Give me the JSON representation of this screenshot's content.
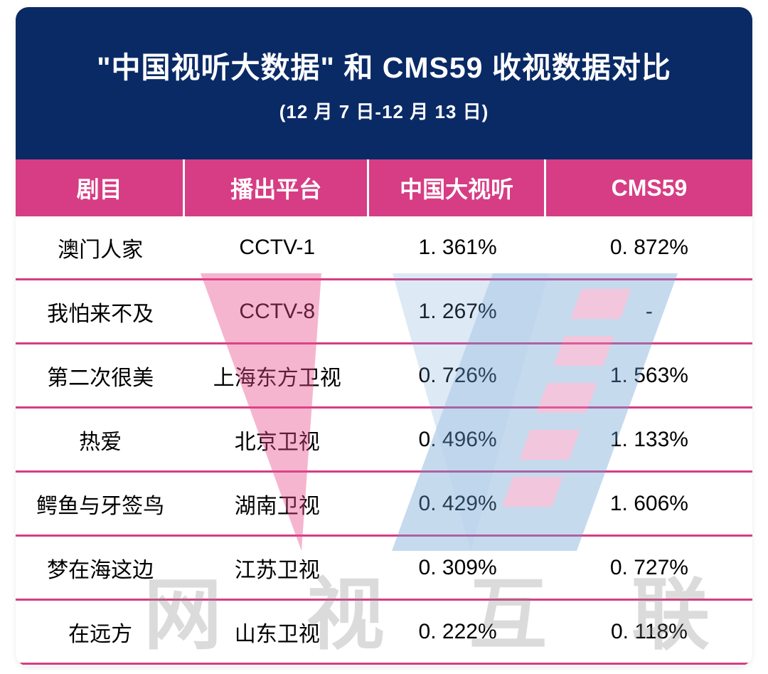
{
  "colors": {
    "header_bg": "#0a2a66",
    "th_bg": "#d63d84",
    "row_border": "#d63d84",
    "text": "#000000",
    "white": "#ffffff"
  },
  "layout": {
    "col_widths_pct": [
      23,
      25,
      24,
      28
    ],
    "title_fontsize": 41,
    "subtitle_fontsize": 26,
    "th_fontsize": 32,
    "td_fontsize": 30,
    "row_border_width": 3
  },
  "header": {
    "title": "\"中国视听大数据\" 和 CMS59 收视数据对比",
    "subtitle": "(12 月 7 日-12 月 13 日)"
  },
  "table": {
    "type": "table",
    "columns": [
      "剧目",
      "播出平台",
      "中国大视听",
      "CMS59"
    ],
    "rows": [
      [
        "澳门人家",
        "CCTV-1",
        "1. 361%",
        "0. 872%"
      ],
      [
        "我怕来不及",
        "CCTV-8",
        "1. 267%",
        "-"
      ],
      [
        "第二次很美",
        "上海东方卫视",
        "0. 726%",
        "1. 563%"
      ],
      [
        "热爱",
        "北京卫视",
        "0. 496%",
        "1. 133%"
      ],
      [
        "鳄鱼与牙签鸟",
        "湖南卫视",
        "0. 429%",
        "1. 606%"
      ],
      [
        "梦在海这边",
        "江苏卫视",
        "0. 309%",
        "0. 727%"
      ],
      [
        "在远方",
        "山东卫视",
        "0. 222%",
        "0. 118%"
      ]
    ]
  },
  "watermark": {
    "text_chars": [
      "网",
      "视",
      "互",
      "联"
    ]
  }
}
